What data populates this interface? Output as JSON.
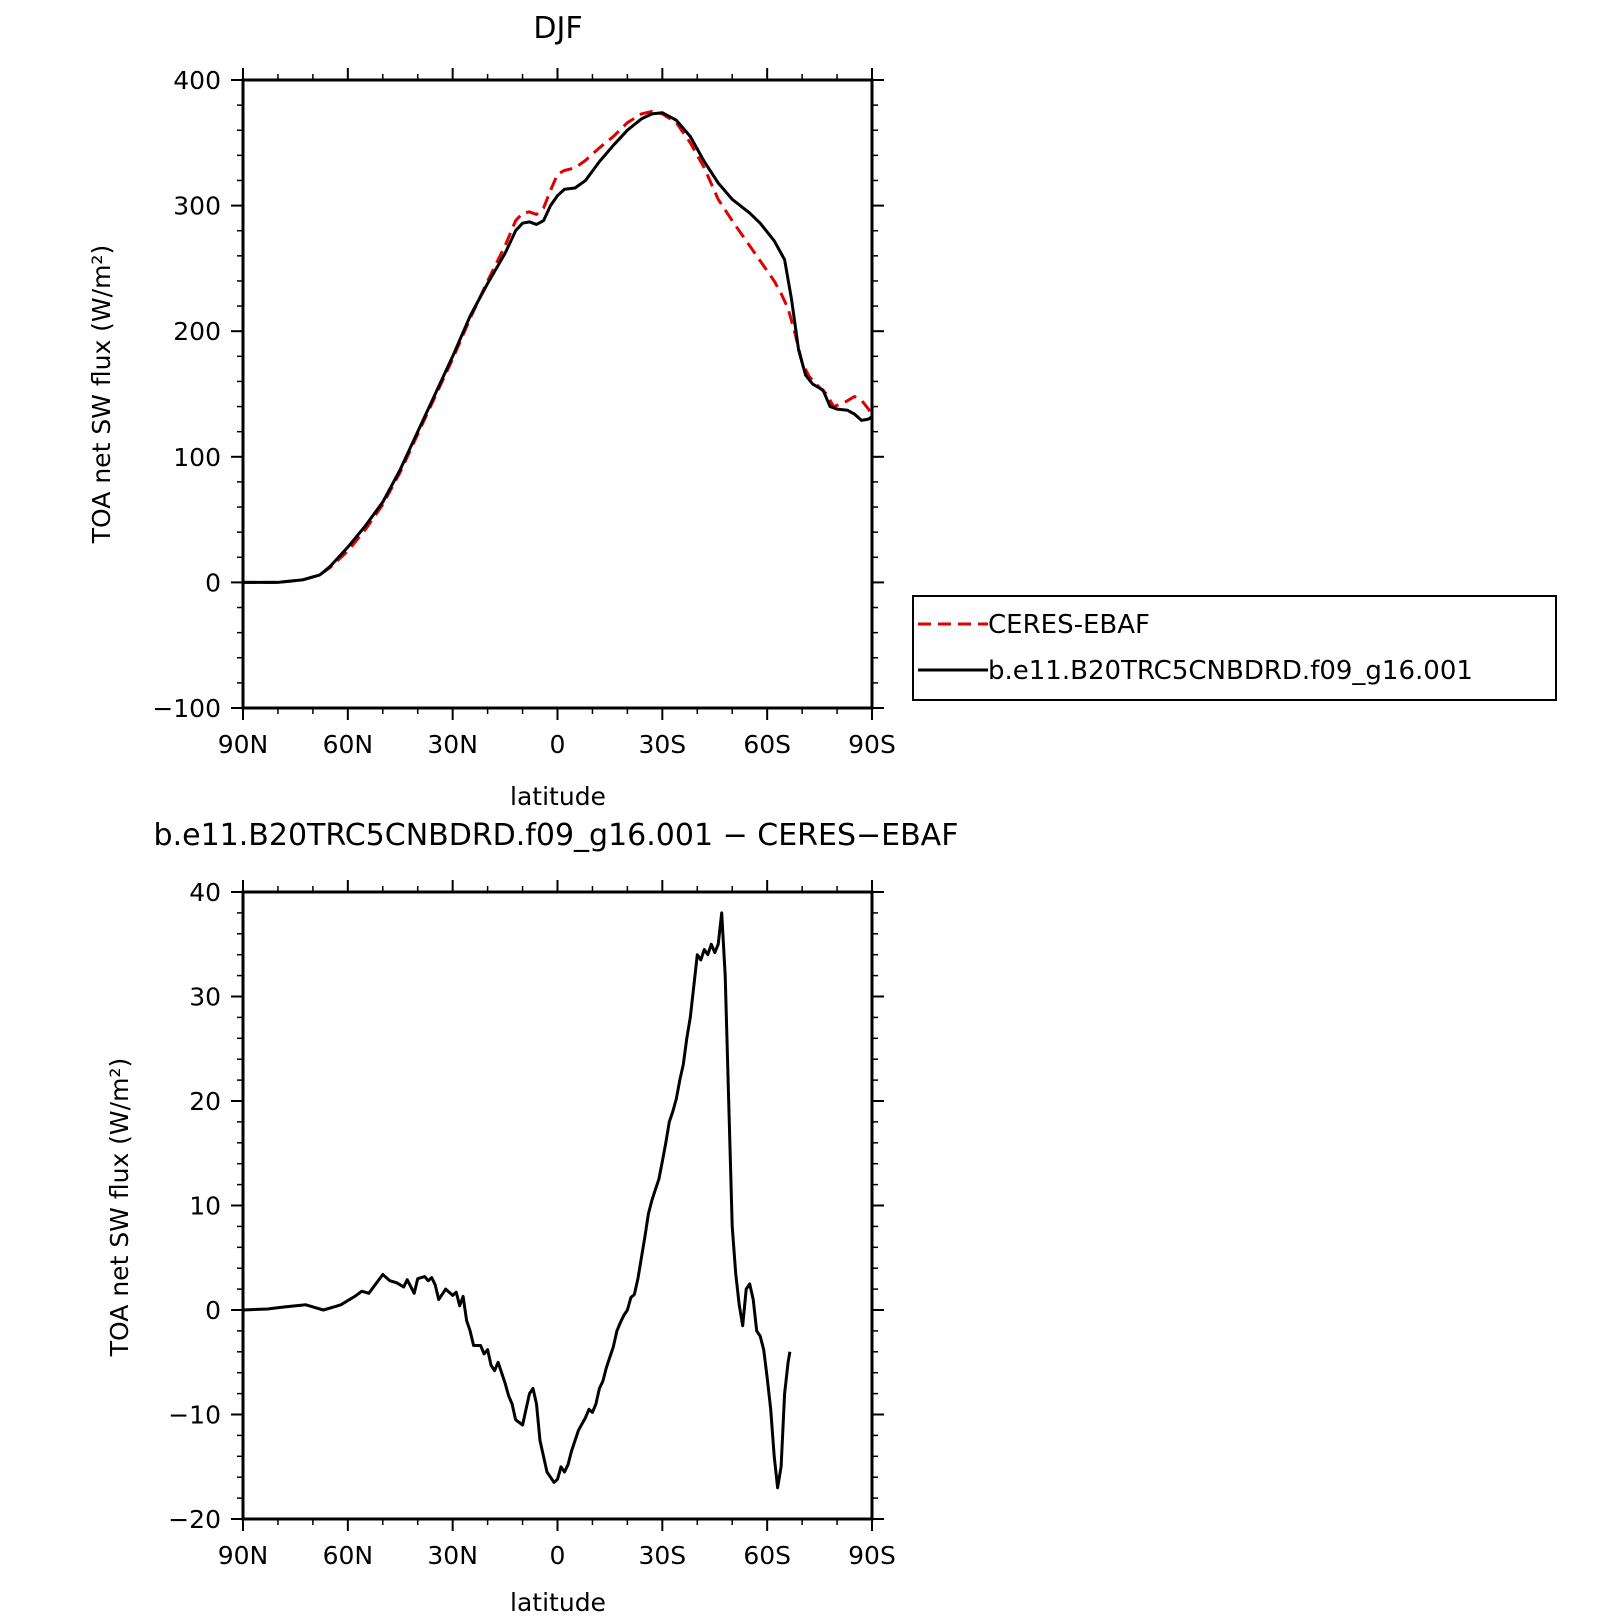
{
  "chart_data": [
    {
      "type": "line",
      "title": "DJF",
      "xlabel": "latitude",
      "ylabel": "TOA net SW flux (W/m²)",
      "ylim": [
        -100,
        400
      ],
      "xlim": [
        -90,
        90
      ],
      "x_direction": "north-to-south",
      "x_ticks": [
        {
          "value": -90,
          "label": "90N"
        },
        {
          "value": -60,
          "label": "60N"
        },
        {
          "value": -30,
          "label": "30N"
        },
        {
          "value": 0,
          "label": "0"
        },
        {
          "value": 30,
          "label": "30S"
        },
        {
          "value": 60,
          "label": "60S"
        },
        {
          "value": 90,
          "label": "90S"
        }
      ],
      "y_ticks": [
        {
          "value": 400,
          "label": "400"
        },
        {
          "value": 300,
          "label": "300"
        },
        {
          "value": 200,
          "label": "200"
        },
        {
          "value": 100,
          "label": "100"
        },
        {
          "value": 0,
          "label": "0"
        },
        {
          "value": -100,
          "label": "−100"
        }
      ],
      "grid": false,
      "legend_position": "right",
      "series": [
        {
          "name": "CERES-EBAF",
          "color": "#e00000",
          "dash": "dashed",
          "points": [
            [
              -90,
              0
            ],
            [
              -80,
              0
            ],
            [
              -73,
              2
            ],
            [
              -68,
              6
            ],
            [
              -65,
              12
            ],
            [
              -60,
              25
            ],
            [
              -55,
              42
            ],
            [
              -50,
              62
            ],
            [
              -45,
              88
            ],
            [
              -40,
              118
            ],
            [
              -35,
              148
            ],
            [
              -30,
              178
            ],
            [
              -25,
              210
            ],
            [
              -20,
              240
            ],
            [
              -15,
              268
            ],
            [
              -12,
              288
            ],
            [
              -10,
              294
            ],
            [
              -8,
              295
            ],
            [
              -6,
              293
            ],
            [
              -4,
              298
            ],
            [
              -2,
              312
            ],
            [
              0,
              325
            ],
            [
              2,
              328
            ],
            [
              5,
              330
            ],
            [
              8,
              336
            ],
            [
              12,
              346
            ],
            [
              16,
              355
            ],
            [
              20,
              366
            ],
            [
              24,
              373
            ],
            [
              27,
              375
            ],
            [
              30,
              373
            ],
            [
              34,
              366
            ],
            [
              38,
              350
            ],
            [
              42,
              330
            ],
            [
              46,
              305
            ],
            [
              50,
              288
            ],
            [
              55,
              268
            ],
            [
              59,
              252
            ],
            [
              62,
              240
            ],
            [
              64,
              230
            ],
            [
              66,
              218
            ],
            [
              68,
              198
            ],
            [
              70,
              175
            ],
            [
              72,
              164
            ],
            [
              75,
              155
            ],
            [
              77,
              150
            ],
            [
              79,
              140
            ],
            [
              82,
              143
            ],
            [
              85,
              148
            ],
            [
              87,
              145
            ],
            [
              89,
              138
            ],
            [
              90,
              133
            ]
          ]
        },
        {
          "name": "b.e11.B20TRC5CNBDRD.f09_g16.001",
          "color": "#000000",
          "dash": "solid",
          "points": [
            [
              -90,
              0
            ],
            [
              -80,
              0
            ],
            [
              -73,
              2
            ],
            [
              -68,
              6
            ],
            [
              -65,
              13
            ],
            [
              -60,
              28
            ],
            [
              -55,
              45
            ],
            [
              -50,
              64
            ],
            [
              -45,
              90
            ],
            [
              -40,
              120
            ],
            [
              -35,
              150
            ],
            [
              -30,
              180
            ],
            [
              -25,
              212
            ],
            [
              -20,
              238
            ],
            [
              -15,
              262
            ],
            [
              -12,
              280
            ],
            [
              -10,
              286
            ],
            [
              -8,
              287
            ],
            [
              -6,
              285
            ],
            [
              -4,
              288
            ],
            [
              -2,
              300
            ],
            [
              0,
              308
            ],
            [
              2,
              313
            ],
            [
              5,
              314
            ],
            [
              8,
              320
            ],
            [
              12,
              335
            ],
            [
              16,
              348
            ],
            [
              20,
              360
            ],
            [
              24,
              369
            ],
            [
              27,
              373
            ],
            [
              30,
              374
            ],
            [
              34,
              368
            ],
            [
              38,
              355
            ],
            [
              42,
              335
            ],
            [
              46,
              318
            ],
            [
              50,
              305
            ],
            [
              55,
              294
            ],
            [
              58,
              286
            ],
            [
              62,
              272
            ],
            [
              65,
              257
            ],
            [
              67,
              225
            ],
            [
              69,
              185
            ],
            [
              71,
              165
            ],
            [
              73,
              158
            ],
            [
              76,
              153
            ],
            [
              78,
              140
            ],
            [
              80,
              138
            ],
            [
              83,
              137
            ],
            [
              85,
              134
            ],
            [
              87,
              129
            ],
            [
              89,
              130
            ],
            [
              90,
              132
            ]
          ]
        }
      ]
    },
    {
      "type": "line",
      "title": "b.e11.B20TRC5CNBDRD.f09_g16.001 − CERES−EBAF",
      "xlabel": "latitude",
      "ylabel": "TOA net SW flux (W/m²)",
      "ylim": [
        -20,
        40
      ],
      "xlim": [
        -90,
        90
      ],
      "x_direction": "north-to-south",
      "x_ticks": [
        {
          "value": -90,
          "label": "90N"
        },
        {
          "value": -60,
          "label": "60N"
        },
        {
          "value": -30,
          "label": "30N"
        },
        {
          "value": 0,
          "label": "0"
        },
        {
          "value": 30,
          "label": "30S"
        },
        {
          "value": 60,
          "label": "60S"
        },
        {
          "value": 90,
          "label": "90S"
        }
      ],
      "y_ticks": [
        {
          "value": 40,
          "label": "40"
        },
        {
          "value": 30,
          "label": "30"
        },
        {
          "value": 20,
          "label": "20"
        },
        {
          "value": 10,
          "label": "10"
        },
        {
          "value": 0,
          "label": "0"
        },
        {
          "value": -10,
          "label": "−10"
        },
        {
          "value": -20,
          "label": "−20"
        }
      ],
      "grid": false,
      "series": [
        {
          "color": "#000000",
          "dash": "solid",
          "points": [
            [
              -90,
              0
            ],
            [
              -83,
              0.1
            ],
            [
              -78,
              0.3
            ],
            [
              -72,
              0.5
            ],
            [
              -70,
              0.3
            ],
            [
              -67,
              0
            ],
            [
              -64,
              0.3
            ],
            [
              -62,
              0.5
            ],
            [
              -58,
              1.3
            ],
            [
              -56,
              1.8
            ],
            [
              -54,
              1.6
            ],
            [
              -52,
              2.5
            ],
            [
              -50,
              3.4
            ],
            [
              -48,
              2.8
            ],
            [
              -46,
              2.6
            ],
            [
              -44,
              2.2
            ],
            [
              -43,
              2.9
            ],
            [
              -41,
              1.6
            ],
            [
              -40,
              3.0
            ],
            [
              -38,
              3.2
            ],
            [
              -37,
              2.8
            ],
            [
              -36,
              3.1
            ],
            [
              -35,
              2.4
            ],
            [
              -34,
              1.0
            ],
            [
              -33,
              1.5
            ],
            [
              -32,
              2.0
            ],
            [
              -30,
              1.4
            ],
            [
              -29,
              1.7
            ],
            [
              -28,
              0.4
            ],
            [
              -27,
              1.3
            ],
            [
              -26,
              -1.0
            ],
            [
              -25,
              -2.0
            ],
            [
              -24,
              -3.4
            ],
            [
              -22,
              -3.4
            ],
            [
              -21,
              -4.2
            ],
            [
              -20,
              -3.8
            ],
            [
              -19,
              -5.3
            ],
            [
              -18,
              -5.8
            ],
            [
              -17,
              -5.0
            ],
            [
              -16,
              -6.0
            ],
            [
              -15,
              -7.0
            ],
            [
              -14,
              -8.2
            ],
            [
              -13,
              -9.0
            ],
            [
              -12,
              -10.5
            ],
            [
              -10,
              -11.0
            ],
            [
              -9,
              -9.5
            ],
            [
              -8,
              -8.0
            ],
            [
              -7,
              -7.5
            ],
            [
              -6,
              -9.0
            ],
            [
              -5,
              -12.5
            ],
            [
              -4,
              -14.0
            ],
            [
              -3,
              -15.5
            ],
            [
              -2,
              -16.0
            ],
            [
              -1,
              -16.5
            ],
            [
              0,
              -16.2
            ],
            [
              1,
              -15.0
            ],
            [
              2,
              -15.5
            ],
            [
              3,
              -14.8
            ],
            [
              4,
              -13.5
            ],
            [
              6,
              -11.5
            ],
            [
              8,
              -10.3
            ],
            [
              9,
              -9.5
            ],
            [
              10,
              -9.8
            ],
            [
              11,
              -9.0
            ],
            [
              12,
              -7.5
            ],
            [
              13,
              -6.8
            ],
            [
              14,
              -5.5
            ],
            [
              15,
              -4.5
            ],
            [
              16,
              -3.5
            ],
            [
              17,
              -2.0
            ],
            [
              18,
              -1.2
            ],
            [
              19,
              -0.5
            ],
            [
              20,
              0
            ],
            [
              21,
              1.2
            ],
            [
              22,
              1.5
            ],
            [
              23,
              3.0
            ],
            [
              24,
              5.0
            ],
            [
              25,
              7.0
            ],
            [
              26,
              9.2
            ],
            [
              27,
              10.5
            ],
            [
              28,
              11.5
            ],
            [
              29,
              12.5
            ],
            [
              30,
              14.2
            ],
            [
              31,
              16.0
            ],
            [
              32,
              18.0
            ],
            [
              33,
              19.0
            ],
            [
              34,
              20.2
            ],
            [
              35,
              22.0
            ],
            [
              36,
              23.5
            ],
            [
              37,
              26.0
            ],
            [
              38,
              28.0
            ],
            [
              39,
              31.0
            ],
            [
              40,
              34.0
            ],
            [
              41,
              33.5
            ],
            [
              42,
              34.5
            ],
            [
              43,
              34.0
            ],
            [
              44,
              35.0
            ],
            [
              45,
              34.2
            ],
            [
              46,
              35.0
            ],
            [
              47,
              38.0
            ],
            [
              48,
              32.0
            ],
            [
              49,
              20.0
            ],
            [
              50,
              8.0
            ],
            [
              51,
              3.5
            ],
            [
              52,
              0.5
            ],
            [
              53,
              -1.5
            ],
            [
              54,
              2.0
            ],
            [
              55,
              2.5
            ],
            [
              56,
              1.0
            ],
            [
              57,
              -2.0
            ],
            [
              58,
              -2.5
            ],
            [
              59,
              -3.8
            ],
            [
              60,
              -6.5
            ],
            [
              61,
              -9.5
            ],
            [
              62,
              -14.0
            ],
            [
              63,
              -17.0
            ],
            [
              64,
              -15.0
            ],
            [
              65,
              -8.0
            ],
            [
              66,
              -5.0
            ],
            [
              66.5,
              -4.0
            ]
          ]
        }
      ]
    }
  ]
}
